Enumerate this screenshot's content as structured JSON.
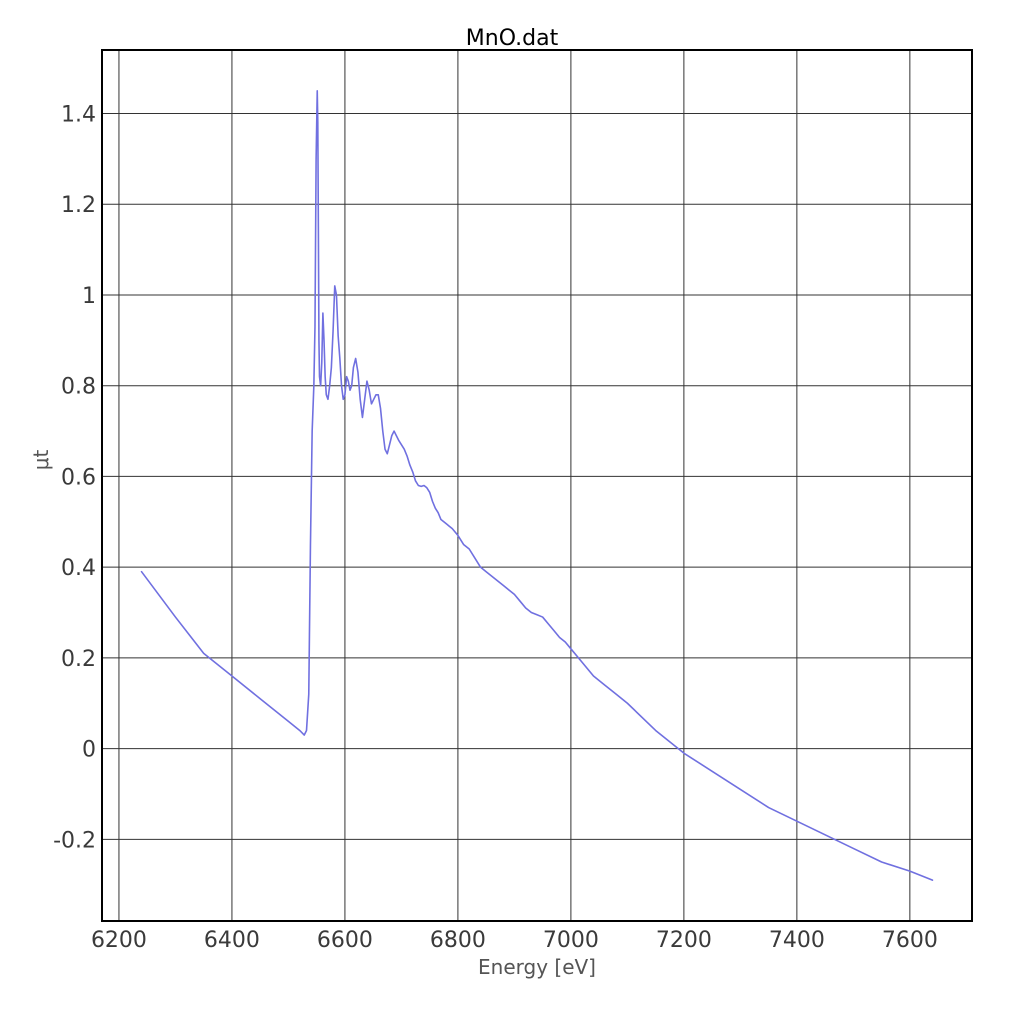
{
  "chart_data": {
    "type": "line",
    "title": "MnO.dat",
    "xlabel": "Energy [eV]",
    "ylabel": "μt",
    "xlim": [
      6170,
      7710
    ],
    "ylim": [
      -0.38,
      1.54
    ],
    "xticks": [
      6200,
      6400,
      6600,
      6800,
      7000,
      7200,
      7400,
      7600
    ],
    "xtick_labels": [
      "6200",
      "6400",
      "6600",
      "6800",
      "7000",
      "7200",
      "7400",
      "7600"
    ],
    "yticks": [
      -0.2,
      0,
      0.2,
      0.4,
      0.6,
      0.8,
      1.0,
      1.2,
      1.4
    ],
    "ytick_labels": [
      "-0.2",
      "0",
      "0.2",
      "0.4",
      "0.6",
      "0.8",
      "1",
      "1.2",
      "1.4"
    ],
    "grid": true,
    "series": [
      {
        "color": "#7070e0",
        "x": [
          6240,
          6300,
          6350,
          6400,
          6450,
          6500,
          6520,
          6528,
          6532,
          6536,
          6539,
          6542,
          6545,
          6547,
          6549,
          6551,
          6552,
          6553,
          6554,
          6555,
          6557,
          6559,
          6561,
          6563,
          6565,
          6567,
          6570,
          6573,
          6576,
          6579,
          6582,
          6585,
          6588,
          6591,
          6594,
          6597,
          6600,
          6603,
          6606,
          6609,
          6612,
          6615,
          6619,
          6623,
          6627,
          6631,
          6635,
          6639,
          6643,
          6647,
          6651,
          6655,
          6659,
          6663,
          6667,
          6671,
          6675,
          6679,
          6683,
          6687,
          6691,
          6695,
          6700,
          6705,
          6710,
          6715,
          6720,
          6725,
          6730,
          6735,
          6740,
          6745,
          6750,
          6755,
          6760,
          6765,
          6770,
          6775,
          6780,
          6785,
          6790,
          6800,
          6810,
          6820,
          6830,
          6840,
          6850,
          6860,
          6870,
          6880,
          6890,
          6900,
          6910,
          6920,
          6930,
          6940,
          6950,
          6960,
          6970,
          6980,
          6990,
          7000,
          7020,
          7040,
          7060,
          7080,
          7100,
          7150,
          7200,
          7250,
          7300,
          7350,
          7400,
          7450,
          7500,
          7550,
          7600,
          7640
        ],
        "y": [
          0.39,
          0.29,
          0.21,
          0.16,
          0.11,
          0.06,
          0.04,
          0.03,
          0.04,
          0.12,
          0.45,
          0.7,
          0.8,
          0.93,
          1.3,
          1.45,
          1.38,
          1.15,
          0.9,
          0.82,
          0.8,
          0.85,
          0.96,
          0.9,
          0.82,
          0.78,
          0.77,
          0.8,
          0.84,
          0.92,
          1.02,
          1.0,
          0.91,
          0.86,
          0.8,
          0.77,
          0.78,
          0.82,
          0.81,
          0.79,
          0.8,
          0.84,
          0.86,
          0.83,
          0.77,
          0.73,
          0.77,
          0.81,
          0.79,
          0.76,
          0.77,
          0.78,
          0.78,
          0.75,
          0.7,
          0.66,
          0.65,
          0.67,
          0.69,
          0.7,
          0.69,
          0.68,
          0.67,
          0.66,
          0.645,
          0.625,
          0.61,
          0.59,
          0.58,
          0.578,
          0.58,
          0.575,
          0.565,
          0.545,
          0.53,
          0.52,
          0.505,
          0.5,
          0.495,
          0.49,
          0.485,
          0.47,
          0.45,
          0.44,
          0.42,
          0.4,
          0.39,
          0.38,
          0.37,
          0.36,
          0.35,
          0.34,
          0.325,
          0.31,
          0.3,
          0.295,
          0.29,
          0.275,
          0.26,
          0.245,
          0.235,
          0.22,
          0.19,
          0.16,
          0.14,
          0.12,
          0.1,
          0.04,
          -0.01,
          -0.05,
          -0.09,
          -0.13,
          -0.16,
          -0.19,
          -0.22,
          -0.25,
          -0.27,
          -0.29
        ]
      }
    ]
  }
}
